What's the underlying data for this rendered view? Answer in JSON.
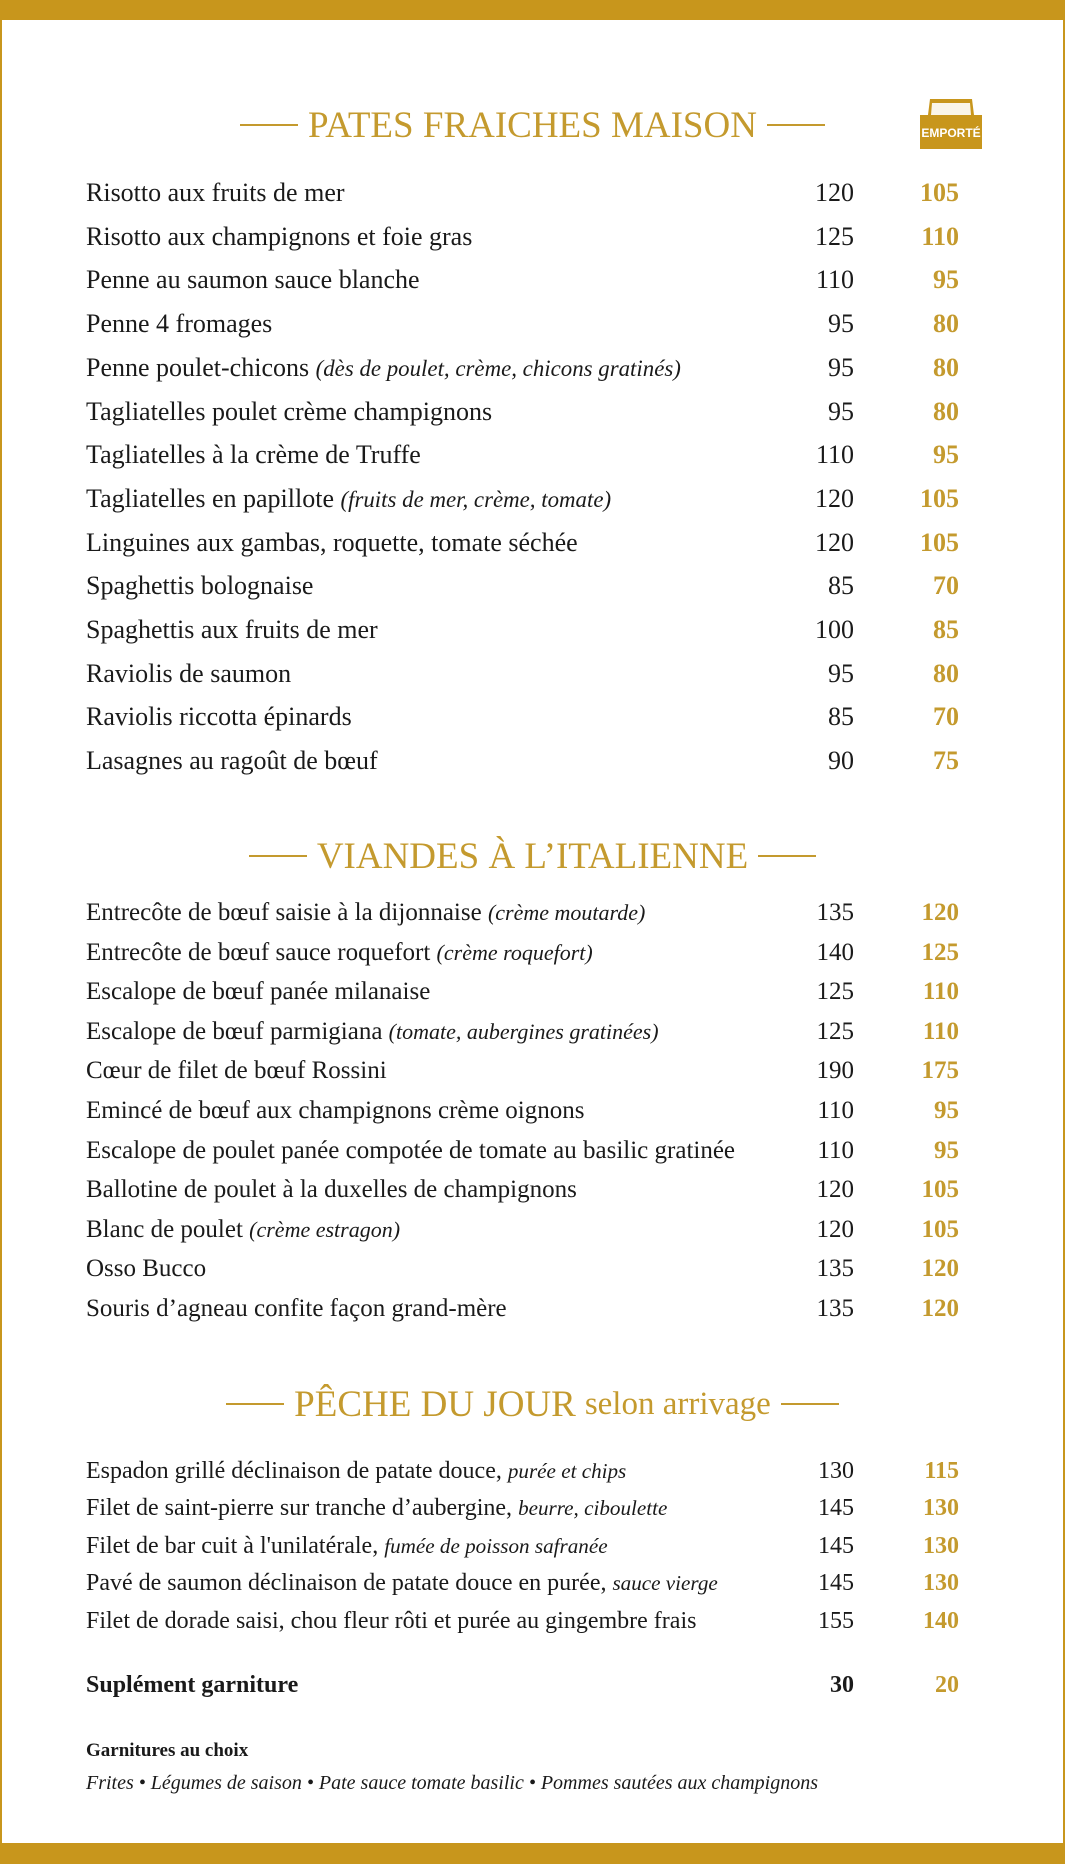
{
  "badge": "EMPORTÉ",
  "sections": [
    {
      "title": "PATES FRAICHES MAISON",
      "items": [
        {
          "name": "Risotto aux fruits de mer",
          "price": 120,
          "takeaway": 105
        },
        {
          "name": "Risotto aux champignons et foie gras",
          "price": 125,
          "takeaway": 110
        },
        {
          "name": "Penne au saumon sauce blanche",
          "price": 110,
          "takeaway": 95
        },
        {
          "name": "Penne 4 fromages",
          "price": 95,
          "takeaway": 80
        },
        {
          "name": "Penne poulet-chicons",
          "note": "(dès de poulet, crème, chicons gratinés)",
          "price": 95,
          "takeaway": 80
        },
        {
          "name": "Tagliatelles poulet crème champignons",
          "price": 95,
          "takeaway": 80
        },
        {
          "name": "Tagliatelles à la crème de Truffe",
          "price": 110,
          "takeaway": 95
        },
        {
          "name": "Tagliatelles en papillote",
          "note": "(fruits de mer, crème, tomate)",
          "price": 120,
          "takeaway": 105
        },
        {
          "name": "Linguines aux gambas, roquette, tomate séchée",
          "price": 120,
          "takeaway": 105
        },
        {
          "name": "Spaghettis bolognaise",
          "price": 85,
          "takeaway": 70
        },
        {
          "name": "Spaghettis aux fruits de mer",
          "price": 100,
          "takeaway": 85
        },
        {
          "name": "Raviolis de saumon",
          "price": 95,
          "takeaway": 80
        },
        {
          "name": "Raviolis riccotta épinards",
          "price": 85,
          "takeaway": 70
        },
        {
          "name": "Lasagnes au ragoût de bœuf",
          "price": 90,
          "takeaway": 75
        }
      ]
    },
    {
      "title": "VIANDES À L’ITALIENNE",
      "items": [
        {
          "name": "Entrecôte de bœuf saisie à la dijonnaise",
          "note": "(crème moutarde)",
          "price": 135,
          "takeaway": 120
        },
        {
          "name": "Entrecôte de bœuf sauce roquefort",
          "note": "(crème roquefort)",
          "price": 140,
          "takeaway": 125
        },
        {
          "name": "Escalope de bœuf  panée milanaise",
          "price": 125,
          "takeaway": 110
        },
        {
          "name": "Escalope de bœuf parmigiana",
          "note": "(tomate, aubergines gratinées)",
          "price": 125,
          "takeaway": 110
        },
        {
          "name": "Cœur de filet de bœuf Rossini",
          "price": 190,
          "takeaway": 175
        },
        {
          "name": "Emincé de bœuf aux champignons crème oignons",
          "price": 110,
          "takeaway": 95
        },
        {
          "name": "Escalope de poulet panée compotée de tomate au basilic gratinée",
          "price": 110,
          "takeaway": 95
        },
        {
          "name": "Ballotine de poulet à la duxelles de champignons",
          "price": 120,
          "takeaway": 105
        },
        {
          "name": "Blanc de poulet",
          "note": "(crème estragon)",
          "price": 120,
          "takeaway": 105
        },
        {
          "name": "Osso Bucco",
          "price": 135,
          "takeaway": 120
        },
        {
          "name": "Souris d’agneau confite façon grand-mère",
          "price": 135,
          "takeaway": 120
        }
      ]
    },
    {
      "title": "PÊCHE DU JOUR",
      "subtitle": "selon arrivage",
      "items": [
        {
          "name": "Espadon grillé déclinaison de patate douce,",
          "note": "purée et chips",
          "price": 130,
          "takeaway": 115
        },
        {
          "name": "Filet de saint-pierre sur tranche d’aubergine,",
          "note": "beurre, ciboulette",
          "price": 145,
          "takeaway": 130
        },
        {
          "name": "Filet de bar cuit à l'unilatérale,",
          "note": "fumée de poisson safranée",
          "price": 145,
          "takeaway": 130
        },
        {
          "name": "Pavé de saumon déclinaison de patate douce en purée,",
          "note": "sauce vierge",
          "price": 145,
          "takeaway": 130
        },
        {
          "name": "Filet de dorade saisi, chou fleur rôti et purée au gingembre frais",
          "price": 155,
          "takeaway": 140
        }
      ]
    }
  ],
  "supplement": {
    "name": "Suplément garniture",
    "price": 30,
    "takeaway": 20
  },
  "garnitures": {
    "title": "Garnitures au choix",
    "text": "Frites • Légumes de saison • Pate sauce tomate basilic • Pommes sautées aux champignons"
  }
}
